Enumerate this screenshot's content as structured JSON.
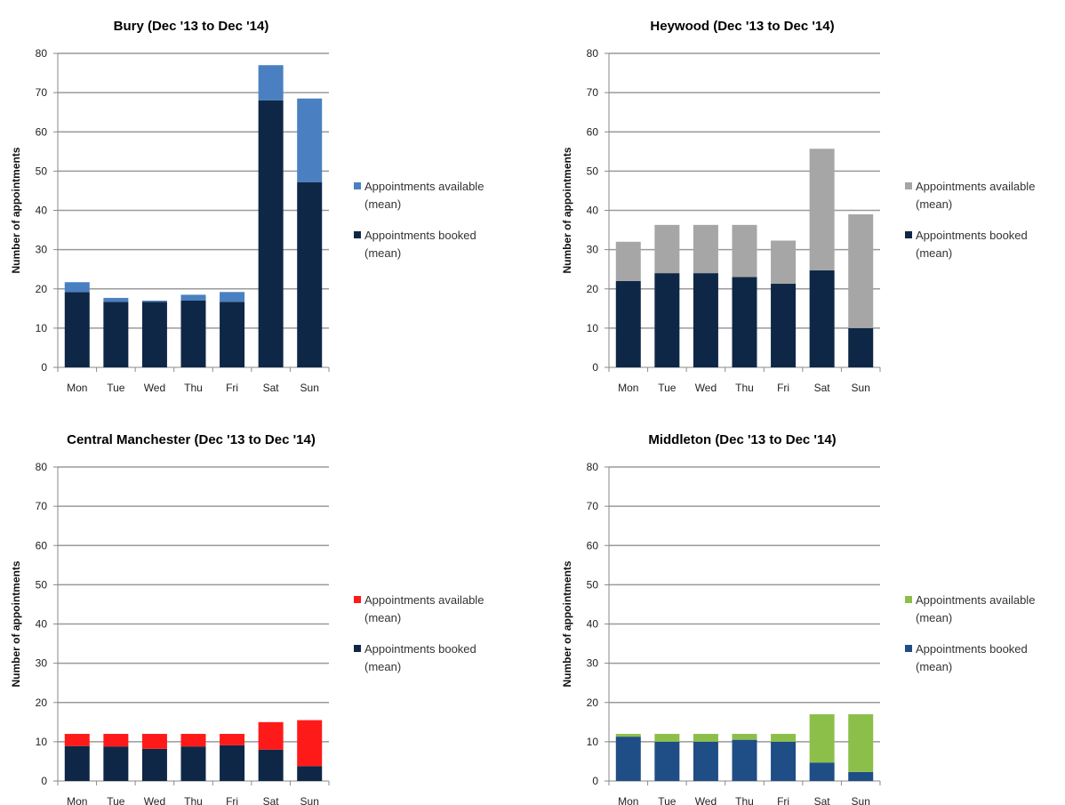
{
  "chart_data": [
    {
      "type": "bar",
      "stacked": true,
      "title": "Bury (Dec '13 to Dec '14)",
      "ylabel": "Number of appointments",
      "xlabel": "",
      "ylim": [
        0,
        80
      ],
      "yticks": [
        0,
        10,
        20,
        30,
        40,
        50,
        60,
        70,
        80
      ],
      "grid": true,
      "legend_position": "right",
      "categories": [
        "Mon",
        "Tue",
        "Wed",
        "Thu",
        "Fri",
        "Sat",
        "Sun"
      ],
      "series": [
        {
          "name": "Appointments booked (mean)",
          "color": "#0f2746",
          "values": [
            19.2,
            16.7,
            16.7,
            17.0,
            16.7,
            68.0,
            47.2
          ]
        },
        {
          "name": "Appointments available (mean)",
          "color": "#4a80c2",
          "values": [
            2.5,
            1.0,
            0.3,
            1.5,
            2.5,
            9.0,
            21.3
          ]
        }
      ],
      "legend": [
        {
          "line1": "Appointments available",
          "line2": "(mean)",
          "color": "#4a80c2"
        },
        {
          "line1": "Appointments booked",
          "line2": "(mean)",
          "color": "#0f2746"
        }
      ]
    },
    {
      "type": "bar",
      "stacked": true,
      "title": "Heywood (Dec '13 to Dec '14)",
      "ylabel": "Number of appointments",
      "xlabel": "",
      "ylim": [
        0,
        80
      ],
      "yticks": [
        0,
        10,
        20,
        30,
        40,
        50,
        60,
        70,
        80
      ],
      "grid": true,
      "legend_position": "right",
      "categories": [
        "Mon",
        "Tue",
        "Wed",
        "Thu",
        "Fri",
        "Sat",
        "Sun"
      ],
      "series": [
        {
          "name": "Appointments booked (mean)",
          "color": "#0f2746",
          "values": [
            22.0,
            24.0,
            24.0,
            23.0,
            21.3,
            24.7,
            10.0
          ]
        },
        {
          "name": "Appointments available (mean)",
          "color": "#a6a6a6",
          "values": [
            10.0,
            12.3,
            12.3,
            13.3,
            11.0,
            31.0,
            29.0
          ]
        }
      ],
      "legend": [
        {
          "line1": "Appointments available",
          "line2": "(mean)",
          "color": "#a6a6a6"
        },
        {
          "line1": "Appointments booked",
          "line2": "(mean)",
          "color": "#0f2746"
        }
      ]
    },
    {
      "type": "bar",
      "stacked": true,
      "title": "Central Manchester (Dec '13 to Dec '14)",
      "ylabel": "Number of appointments",
      "xlabel": "",
      "ylim": [
        0,
        80
      ],
      "yticks": [
        0,
        10,
        20,
        30,
        40,
        50,
        60,
        70,
        80
      ],
      "grid": true,
      "legend_position": "right",
      "categories": [
        "Mon",
        "Tue",
        "Wed",
        "Thu",
        "Fri",
        "Sat",
        "Sun"
      ],
      "series": [
        {
          "name": "Appointments booked (mean)",
          "color": "#0f2746",
          "values": [
            8.9,
            8.8,
            8.2,
            8.8,
            9.1,
            8.0,
            3.8
          ]
        },
        {
          "name": "Appointments available (mean)",
          "color": "#ff1a1a",
          "values": [
            3.1,
            3.2,
            3.8,
            3.2,
            2.9,
            7.0,
            11.7
          ]
        }
      ],
      "legend": [
        {
          "line1": "Appointments available",
          "line2": "(mean)",
          "color": "#ff1a1a"
        },
        {
          "line1": "Appointments booked",
          "line2": "(mean)",
          "color": "#0f2746"
        }
      ]
    },
    {
      "type": "bar",
      "stacked": true,
      "title": "Middleton (Dec '13 to Dec '14)",
      "ylabel": "Number of appointments",
      "xlabel": "",
      "ylim": [
        0,
        80
      ],
      "yticks": [
        0,
        10,
        20,
        30,
        40,
        50,
        60,
        70,
        80
      ],
      "grid": true,
      "legend_position": "right",
      "categories": [
        "Mon",
        "Tue",
        "Wed",
        "Thu",
        "Fri",
        "Sat",
        "Sun"
      ],
      "series": [
        {
          "name": "Appointments booked (mean)",
          "color": "#1f4d86",
          "values": [
            11.3,
            10.0,
            10.0,
            10.5,
            10.0,
            4.7,
            2.3
          ]
        },
        {
          "name": "Appointments available (mean)",
          "color": "#8cbf4a",
          "values": [
            0.7,
            2.0,
            2.0,
            1.5,
            2.0,
            12.3,
            14.7
          ]
        }
      ],
      "legend": [
        {
          "line1": "Appointments available",
          "line2": "(mean)",
          "color": "#8cbf4a"
        },
        {
          "line1": "Appointments booked",
          "line2": "(mean)",
          "color": "#1f4d86"
        }
      ]
    }
  ]
}
